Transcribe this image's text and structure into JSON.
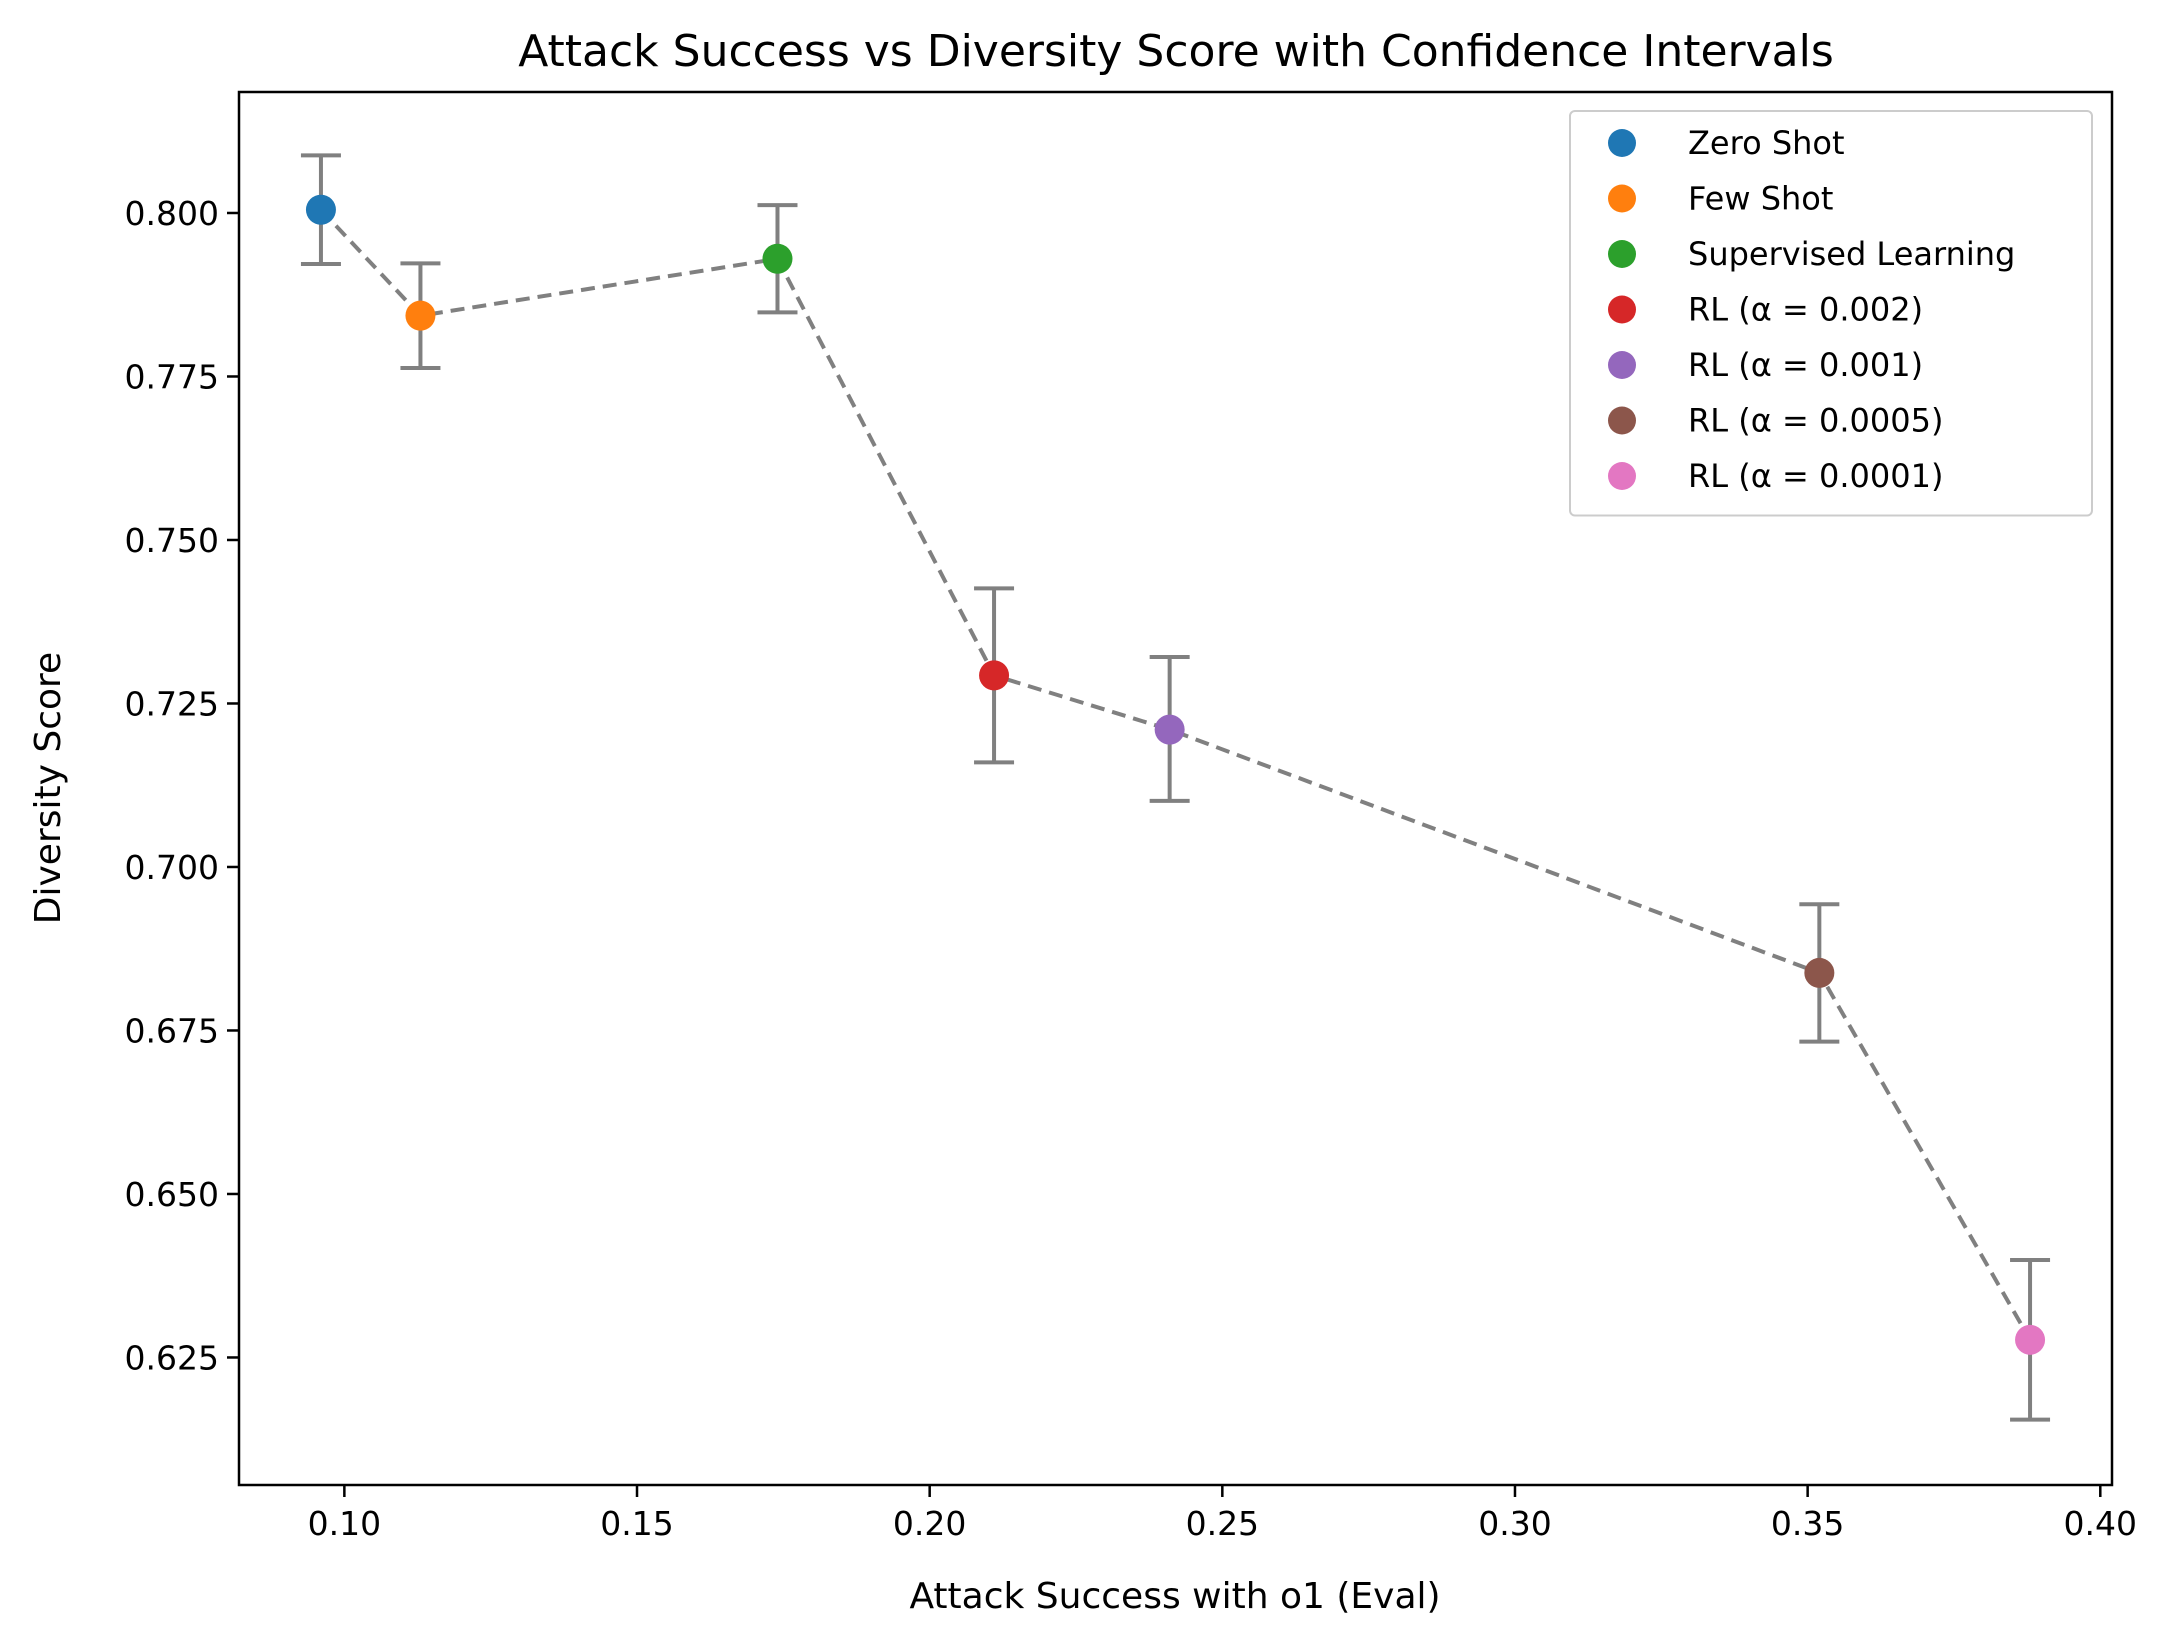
{
  "chart_data": {
    "type": "scatter",
    "title": "Attack Success vs Diversity Score with Confidence Intervals",
    "xlabel": "Attack Success with o1 (Eval)",
    "ylabel": "Diversity Score",
    "xlim": [
      0.082,
      0.402
    ],
    "ylim": [
      0.6055,
      0.8185
    ],
    "x_ticks": [
      0.1,
      0.15,
      0.2,
      0.25,
      0.3,
      0.35,
      0.4
    ],
    "x_tick_labels": [
      "0.10",
      "0.15",
      "0.20",
      "0.25",
      "0.30",
      "0.35",
      "0.40"
    ],
    "y_ticks": [
      0.625,
      0.65,
      0.675,
      0.7,
      0.725,
      0.75,
      0.775,
      0.8
    ],
    "y_tick_labels": [
      "0.625",
      "0.650",
      "0.675",
      "0.700",
      "0.725",
      "0.750",
      "0.775",
      "0.800"
    ],
    "grid": false,
    "legend_position": "top-right",
    "connector": {
      "style": "dashed",
      "color": "#808080"
    },
    "errorbar_color": "#808080",
    "series": [
      {
        "name": "Zero Shot",
        "x": 0.096,
        "y": 0.8005,
        "yerr_low": 0.7922,
        "yerr_high": 0.8088,
        "color": "#1f77b4"
      },
      {
        "name": "Few Shot",
        "x": 0.113,
        "y": 0.7843,
        "yerr_low": 0.7763,
        "yerr_high": 0.7923,
        "color": "#ff7f0e"
      },
      {
        "name": "Supervised Learning",
        "x": 0.174,
        "y": 0.793,
        "yerr_low": 0.7848,
        "yerr_high": 0.8012,
        "color": "#2ca02c"
      },
      {
        "name": "RL (α = 0.002)",
        "x": 0.211,
        "y": 0.7293,
        "yerr_low": 0.716,
        "yerr_high": 0.7426,
        "color": "#d62728"
      },
      {
        "name": "RL (α = 0.001)",
        "x": 0.241,
        "y": 0.721,
        "yerr_low": 0.7101,
        "yerr_high": 0.7321,
        "color": "#9467bd"
      },
      {
        "name": "RL (α = 0.0005)",
        "x": 0.352,
        "y": 0.6838,
        "yerr_low": 0.6733,
        "yerr_high": 0.6943,
        "color": "#8c564b"
      },
      {
        "name": "RL (α = 0.0001)",
        "x": 0.388,
        "y": 0.6277,
        "yerr_low": 0.6155,
        "yerr_high": 0.6399,
        "color": "#e377c2"
      }
    ]
  }
}
